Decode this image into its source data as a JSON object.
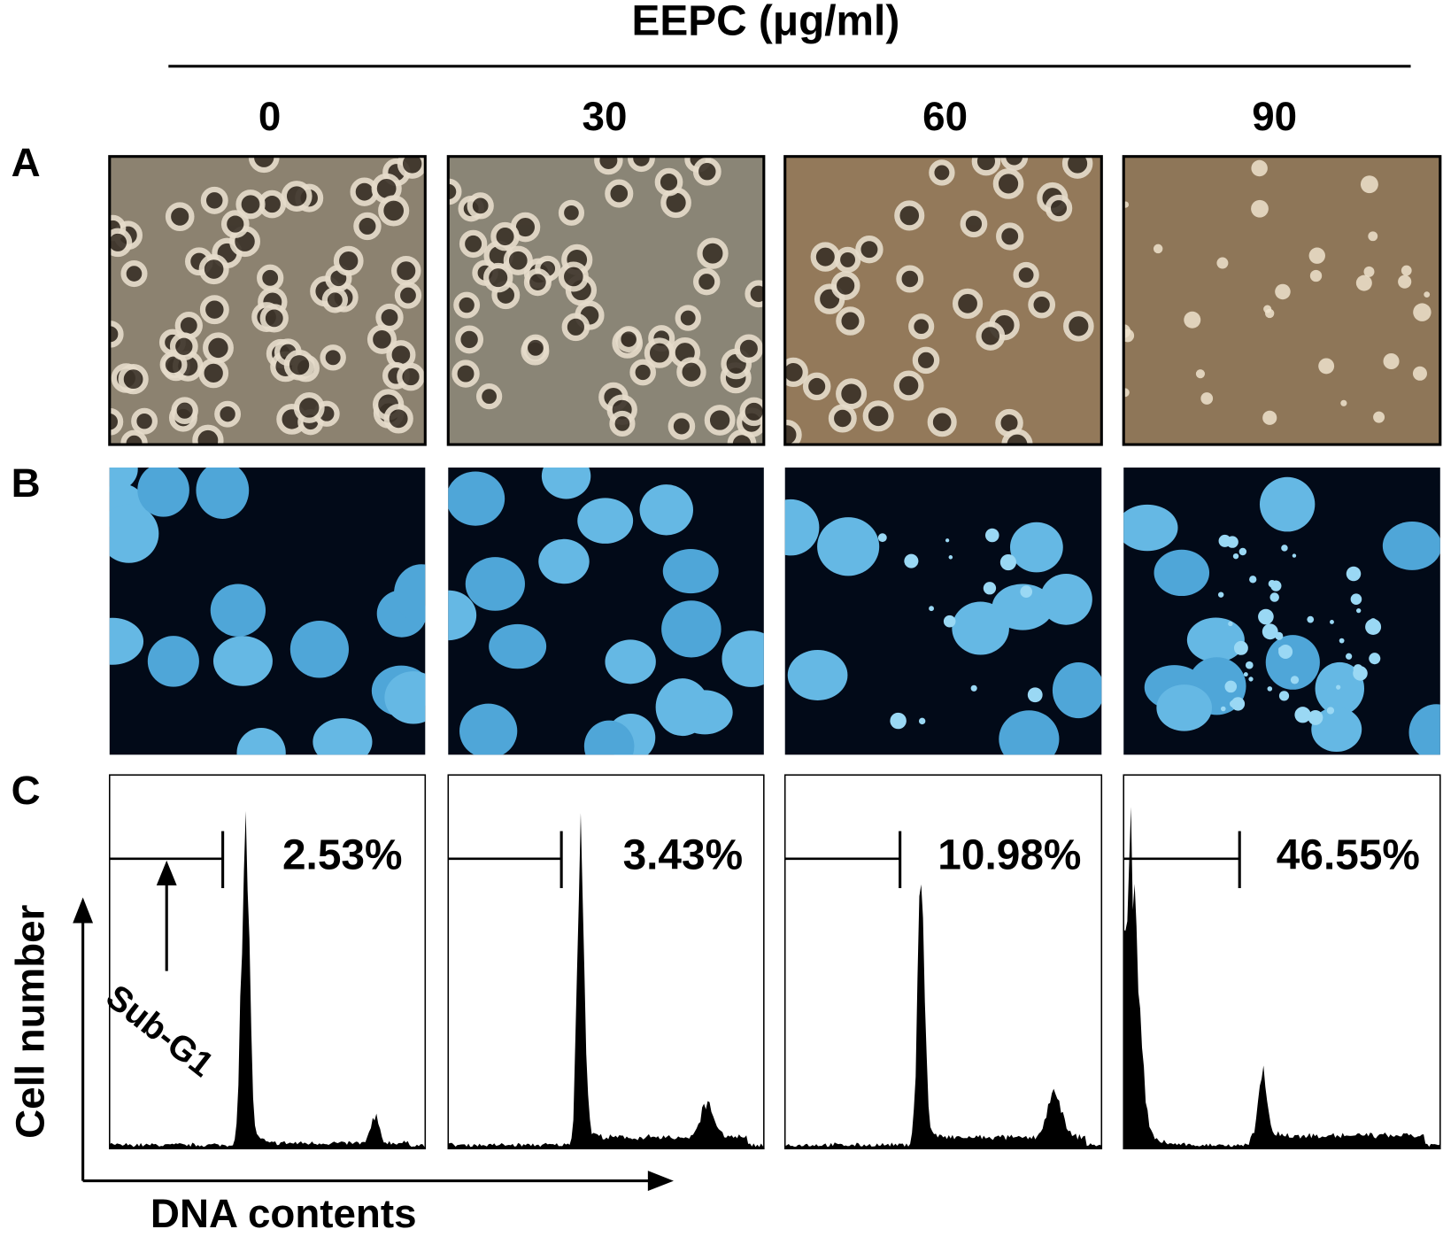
{
  "header": {
    "title": "EEPC (μg/ml)"
  },
  "columns": [
    "0",
    "30",
    "60",
    "90"
  ],
  "rows": [
    "A",
    "B",
    "C"
  ],
  "panel_c": {
    "percentages": [
      "2.53%",
      "3.43%",
      "10.98%",
      "46.55%"
    ],
    "annotation": "Sub-G1",
    "y_axis_label": "Cell number",
    "x_axis_label": "DNA contents"
  }
}
